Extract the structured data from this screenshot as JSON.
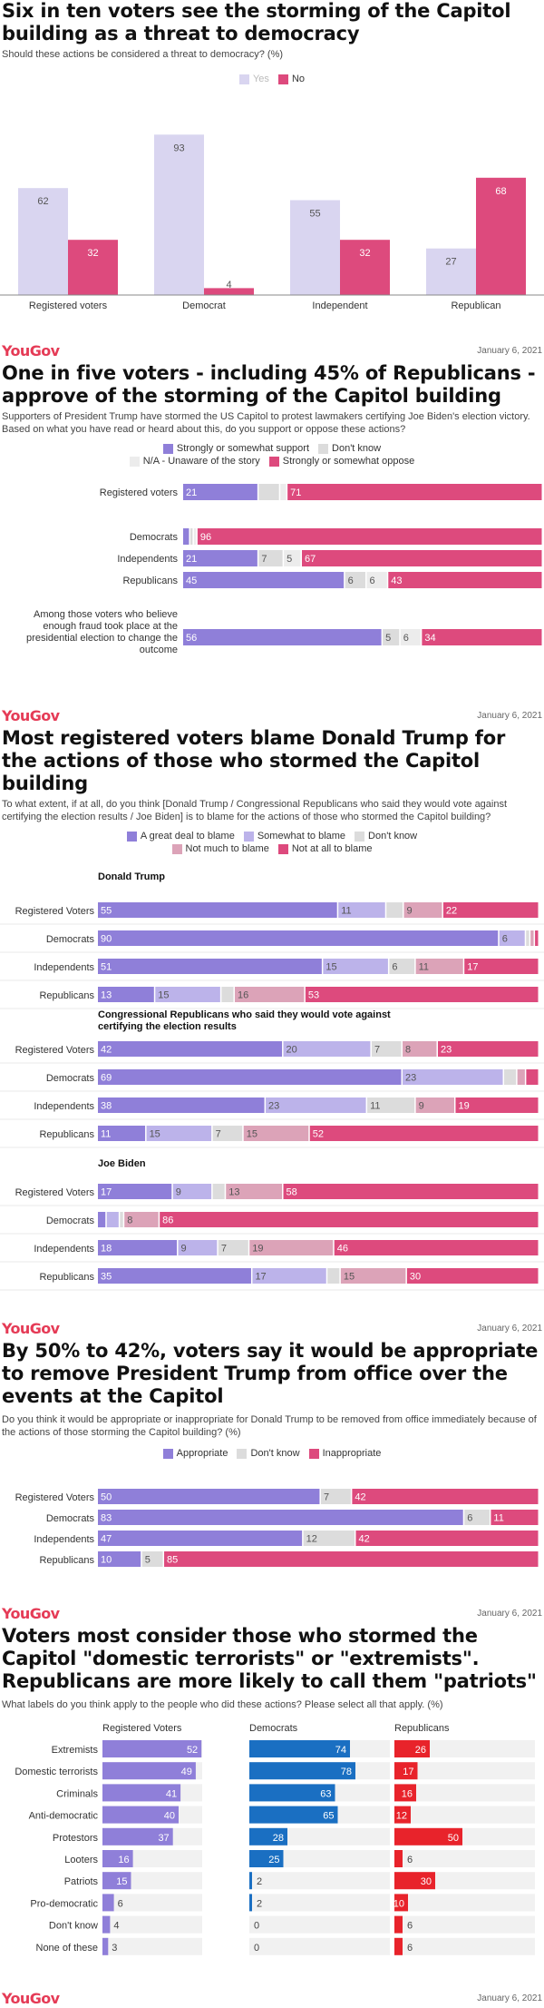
{
  "brand": {
    "logo": "YouGov",
    "date": "January 6, 2021"
  },
  "colors": {
    "yes": "#d9d5f0",
    "no": "#dd4a7d",
    "support": "#8f7fd9",
    "dontknow": "#dcdcdc",
    "unaware": "#ececec",
    "oppose": "#dd4a7d",
    "great_deal": "#8f7fd9",
    "somewhat": "#bcb3ea",
    "not_much": "#dca3b8",
    "not_at_all": "#dd4a7d",
    "appropriate": "#8f7fd9",
    "inappropriate": "#dd4a7d",
    "rv_bar": "#8f7fd9",
    "dem_bar": "#1a6fc2",
    "rep_bar": "#e8232b",
    "track": "#f1f1f1"
  },
  "chart_data": [
    {
      "type": "bar",
      "title": "Six in ten voters see the storming of the Capitol building as a threat to democracy",
      "subtitle": "Should these actions be considered a threat to democracy? (%)",
      "categories": [
        "Registered voters",
        "Democrat",
        "Independent",
        "Republican"
      ],
      "series": [
        {
          "name": "Yes",
          "values": [
            62,
            93,
            55,
            27
          ]
        },
        {
          "name": "No",
          "values": [
            32,
            4,
            32,
            68
          ]
        }
      ],
      "ylim": [
        0,
        100
      ],
      "legend": "top-center"
    },
    {
      "type": "bar",
      "title": "One in five voters - including 45% of Republicans - approve of the storming of the Capitol building",
      "subtitle": "Supporters of President Trump have stormed the US Capitol to protest lawmakers certifying Joe Biden's election victory. Based on what you have read or heard about this, do you support or oppose these actions?",
      "categories": [
        "Registered voters",
        "Democrats",
        "Independents",
        "Republicans",
        "Among those voters who believe enough fraud took place at the presidential election to change the outcome"
      ],
      "series": [
        {
          "name": "Strongly or somewhat support",
          "values": [
            21,
            2,
            21,
            45,
            56
          ]
        },
        {
          "name": "Don't know",
          "values": [
            6,
            1,
            7,
            6,
            5
          ]
        },
        {
          "name": "N/A - Unaware of the story",
          "values": [
            2,
            1,
            5,
            6,
            6
          ]
        },
        {
          "name": "Strongly or somewhat oppose",
          "values": [
            71,
            96,
            67,
            43,
            34
          ]
        }
      ],
      "labels": [
        [
          "21",
          "",
          "",
          "71"
        ],
        [
          "",
          "",
          "",
          "96"
        ],
        [
          "21",
          "7",
          "5",
          "67"
        ],
        [
          "45",
          "6",
          "6",
          "43"
        ],
        [
          "56",
          "5",
          "6",
          "34"
        ]
      ],
      "legend": "top-center"
    },
    {
      "type": "bar",
      "title": "Most registered voters blame Donald Trump for the actions of those who stormed the Capitol building",
      "subtitle": "To what extent, if at all, do you think [Donald Trump / Congressional Republicans who said they would vote against certifying the election results / Joe Biden] is to blame for the actions of those who stormed the Capitol building?",
      "legend": "top-center",
      "series_names": [
        "A great deal to blame",
        "Somewhat to blame",
        "Don't know",
        "Not much to blame",
        "Not at all to blame"
      ],
      "groups": [
        {
          "name": "Donald Trump",
          "categories": [
            "Registered Voters",
            "Democrats",
            "Independents",
            "Republicans"
          ],
          "values": [
            [
              55,
              11,
              4,
              9,
              22
            ],
            [
              90,
              6,
              1,
              1,
              1
            ],
            [
              51,
              15,
              6,
              11,
              17
            ],
            [
              13,
              15,
              3,
              16,
              53
            ]
          ],
          "labels": [
            [
              "55",
              "11",
              "",
              "9",
              "22"
            ],
            [
              "90",
              "6",
              "",
              "",
              ""
            ],
            [
              "51",
              "15",
              "6",
              "11",
              "17"
            ],
            [
              "13",
              "15",
              "",
              "16",
              "53"
            ]
          ]
        },
        {
          "name": "Congressional Republicans who said they would vote against certifying the election results",
          "categories": [
            "Registered Voters",
            "Democrats",
            "Independents",
            "Republicans"
          ],
          "values": [
            [
              42,
              20,
              7,
              8,
              23
            ],
            [
              69,
              23,
              3,
              2,
              3
            ],
            [
              38,
              23,
              11,
              9,
              19
            ],
            [
              11,
              15,
              7,
              15,
              52
            ]
          ],
          "labels": [
            [
              "42",
              "20",
              "7",
              "8",
              "23"
            ],
            [
              "69",
              "23",
              "",
              "",
              ""
            ],
            [
              "38",
              "23",
              "11",
              "9",
              "19"
            ],
            [
              "11",
              "15",
              "7",
              "15",
              "52"
            ]
          ]
        },
        {
          "name": "Joe Biden",
          "categories": [
            "Registered Voters",
            "Democrats",
            "Independents",
            "Republicans"
          ],
          "values": [
            [
              17,
              9,
              3,
              13,
              58
            ],
            [
              2,
              3,
              1,
              8,
              86
            ],
            [
              18,
              9,
              7,
              19,
              46
            ],
            [
              35,
              17,
              3,
              15,
              30
            ]
          ],
          "labels": [
            [
              "17",
              "9",
              "",
              "13",
              "58"
            ],
            [
              "",
              "",
              "",
              "8",
              "86"
            ],
            [
              "18",
              "9",
              "7",
              "19",
              "46"
            ],
            [
              "35",
              "17",
              "",
              "15",
              "30"
            ]
          ]
        }
      ]
    },
    {
      "type": "bar",
      "title": "By 50% to 42%, voters say it would be appropriate to remove President Trump from office over the events at the Capitol",
      "subtitle": "Do you think it would be appropriate or inappropriate for Donald Trump to be removed from office immediately because of the actions of those storming the Capitol building? (%)",
      "categories": [
        "Registered Voters",
        "Democrats",
        "Independents",
        "Republicans"
      ],
      "series": [
        {
          "name": "Appropriate",
          "values": [
            50,
            83,
            47,
            10
          ]
        },
        {
          "name": "Don't know",
          "values": [
            7,
            6,
            12,
            5
          ]
        },
        {
          "name": "Inappropriate",
          "values": [
            42,
            11,
            42,
            85
          ]
        }
      ],
      "legend": "top-center"
    },
    {
      "type": "bar",
      "title": "Voters most consider those who stormed the Capitol \"domestic terrorists\" or \"extremists\". Republicans are more likely to call them \"patriots\"",
      "subtitle": "What labels do you think apply to the people who did these actions? Please select all that apply. (%)",
      "categories": [
        "Extremists",
        "Domestic terrorists",
        "Criminals",
        "Anti-democratic",
        "Protestors",
        "Looters",
        "Patriots",
        "Pro-democratic",
        "Don't know",
        "None of these"
      ],
      "series": [
        {
          "name": "Registered Voters",
          "values": [
            52,
            49,
            41,
            40,
            37,
            16,
            15,
            6,
            4,
            3
          ]
        },
        {
          "name": "Democrats",
          "values": [
            74,
            78,
            63,
            65,
            28,
            25,
            2,
            2,
            0,
            0
          ]
        },
        {
          "name": "Republicans",
          "values": [
            26,
            17,
            16,
            12,
            50,
            6,
            30,
            10,
            6,
            6
          ]
        }
      ],
      "xlim": [
        0,
        100
      ]
    }
  ]
}
